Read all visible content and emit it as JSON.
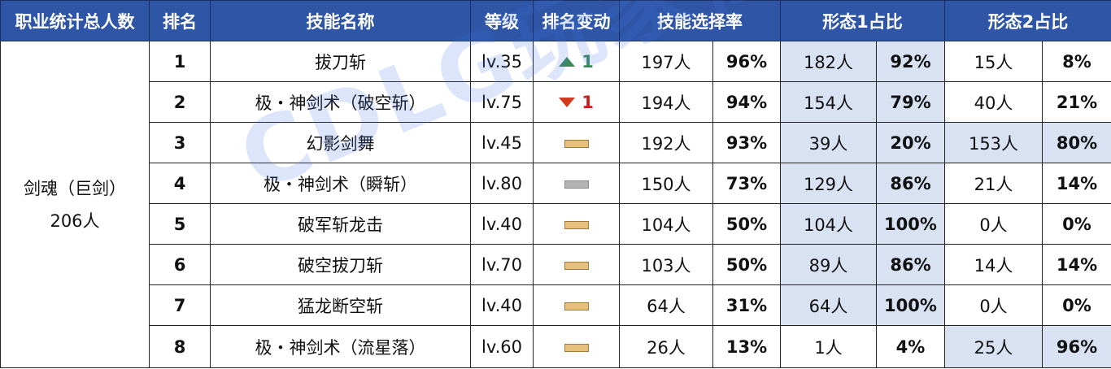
{
  "headers": {
    "job_total": "职业统计总人数",
    "rank": "排名",
    "skill_name": "技能名称",
    "level": "等级",
    "rank_change": "排名变动",
    "select_rate": "技能选择率",
    "form1": "形态1占比",
    "form2": "形态2占比"
  },
  "job": {
    "name": "剑魂（巨剑）",
    "total": "206人"
  },
  "rows": [
    {
      "rank": "1",
      "skill": "拔刀斩",
      "level": "lv.35",
      "change": {
        "type": "up",
        "value": "1"
      },
      "sel_count": "197人",
      "sel_pct": "96%",
      "f1_count": "182人",
      "f1_pct": "92%",
      "f2_count": "15人",
      "f2_pct": "8%"
    },
    {
      "rank": "2",
      "skill": "极・神剑术（破空斩）",
      "level": "lv.75",
      "change": {
        "type": "down",
        "value": "1"
      },
      "sel_count": "194人",
      "sel_pct": "94%",
      "f1_count": "154人",
      "f1_pct": "79%",
      "f2_count": "40人",
      "f2_pct": "21%"
    },
    {
      "rank": "3",
      "skill": "幻影剑舞",
      "level": "lv.45",
      "change": {
        "type": "same",
        "value": ""
      },
      "sel_count": "192人",
      "sel_pct": "93%",
      "f1_count": "39人",
      "f1_pct": "20%",
      "f2_count": "153人",
      "f2_pct": "80%"
    },
    {
      "rank": "4",
      "skill": "极・神剑术（瞬斩）",
      "level": "lv.80",
      "change": {
        "type": "new",
        "value": ""
      },
      "sel_count": "150人",
      "sel_pct": "73%",
      "f1_count": "129人",
      "f1_pct": "86%",
      "f2_count": "21人",
      "f2_pct": "14%"
    },
    {
      "rank": "5",
      "skill": "破军斩龙击",
      "level": "lv.40",
      "change": {
        "type": "same",
        "value": ""
      },
      "sel_count": "104人",
      "sel_pct": "50%",
      "f1_count": "104人",
      "f1_pct": "100%",
      "f2_count": "0人",
      "f2_pct": "0%"
    },
    {
      "rank": "6",
      "skill": "破空拔刀斩",
      "level": "lv.70",
      "change": {
        "type": "same",
        "value": ""
      },
      "sel_count": "103人",
      "sel_pct": "50%",
      "f1_count": "89人",
      "f1_pct": "86%",
      "f2_count": "14人",
      "f2_pct": "14%"
    },
    {
      "rank": "7",
      "skill": "猛龙断空斩",
      "level": "lv.40",
      "change": {
        "type": "same",
        "value": ""
      },
      "sel_count": "64人",
      "sel_pct": "31%",
      "f1_count": "64人",
      "f1_pct": "100%",
      "f2_count": "0人",
      "f2_pct": "0%"
    },
    {
      "rank": "8",
      "skill": "极・神剑术（流星落）",
      "level": "lv.60",
      "change": {
        "type": "same",
        "value": ""
      },
      "sel_count": "26人",
      "sel_pct": "13%",
      "f1_count": "1人",
      "f1_pct": "4%",
      "f2_count": "25人",
      "f2_pct": "96%"
    }
  ],
  "highlight": {
    "form1": [
      true,
      true,
      true,
      true,
      true,
      true,
      true,
      false
    ],
    "form2": [
      false,
      false,
      true,
      false,
      false,
      false,
      false,
      true
    ]
  },
  "colors": {
    "header_bg": "#2f56a6",
    "highlight_bg": "#d9e2f3",
    "up": "#3c8a5a",
    "down": "#d23b1d",
    "same_bar": "#e8c07e",
    "new_bar": "#b3b3b3"
  },
  "watermark": "CDLG玩家社区"
}
